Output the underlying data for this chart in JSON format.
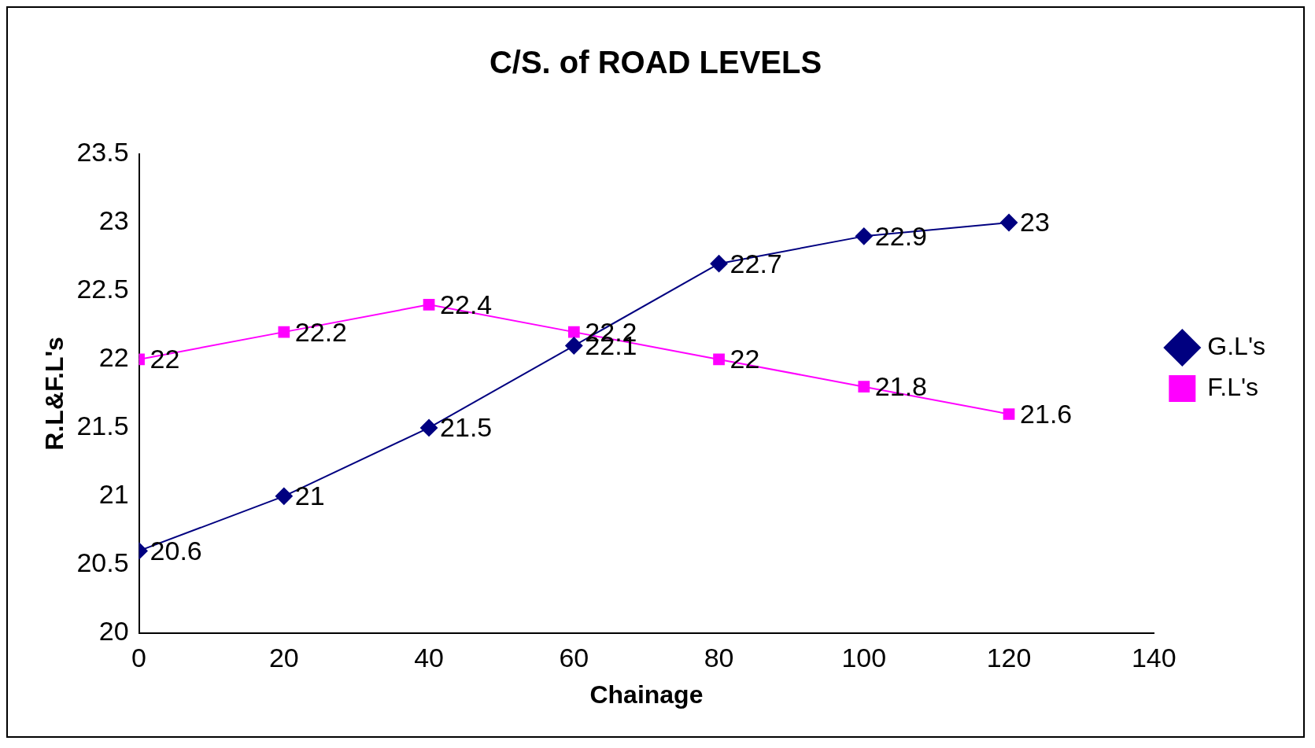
{
  "chart_data": {
    "type": "line",
    "title": "C/S. of ROAD LEVELS",
    "xlabel": "Chainage",
    "ylabel": "R.L&F.L's",
    "x": [
      0,
      20,
      40,
      60,
      80,
      100,
      120
    ],
    "series": [
      {
        "name": "G.L's",
        "color": "#000080",
        "marker": "diamond",
        "values": [
          20.6,
          21,
          21.5,
          22.1,
          22.7,
          22.9,
          23
        ]
      },
      {
        "name": "F.L's",
        "color": "#ff00ff",
        "marker": "square",
        "values": [
          22,
          22.2,
          22.4,
          22.2,
          22,
          21.8,
          21.6
        ]
      }
    ],
    "xlim": [
      0,
      140
    ],
    "xticks": [
      0,
      20,
      40,
      60,
      80,
      100,
      120,
      140
    ],
    "ylim": [
      20,
      23.5
    ],
    "yticks": [
      20,
      20.5,
      21,
      21.5,
      22,
      22.5,
      23,
      23.5
    ],
    "grid": false,
    "legend": "right",
    "data_labels": true,
    "line_style": "solid"
  }
}
